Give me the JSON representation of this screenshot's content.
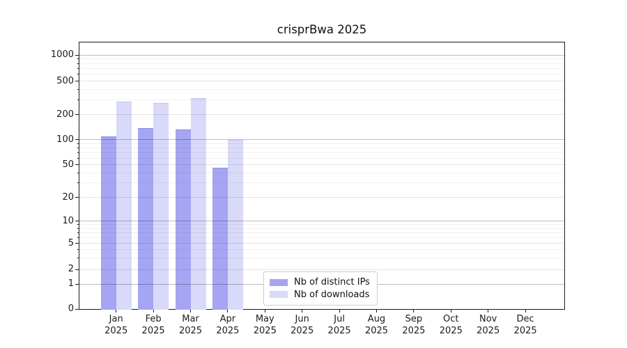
{
  "title": "crisprBwa 2025",
  "chart_data": {
    "type": "bar",
    "title": "crisprBwa 2025",
    "categories": [
      "Jan",
      "Feb",
      "Mar",
      "Apr",
      "May",
      "Jun",
      "Jul",
      "Aug",
      "Sep",
      "Oct",
      "Nov",
      "Dec"
    ],
    "category_year": "2025",
    "series": [
      {
        "name": "Nb of distinct IPs",
        "color": "#a5a5f3",
        "edge_color": "#8d8de4",
        "values": [
          110,
          138,
          133,
          46,
          null,
          null,
          null,
          null,
          null,
          null,
          null,
          null
        ]
      },
      {
        "name": "Nb of downloads",
        "color": "#d9d9f9",
        "edge_color": "#c2c2ef",
        "values": [
          285,
          277,
          315,
          100,
          null,
          null,
          null,
          null,
          null,
          null,
          null,
          null
        ]
      }
    ],
    "xlabel": "",
    "ylabel": "",
    "y_axis": {
      "scale": "symlog",
      "tick_labels": [
        "0",
        "1",
        "2",
        "5",
        "10",
        "20",
        "50",
        "100",
        "200",
        "500",
        "1000"
      ],
      "tick_values": [
        0,
        1,
        2,
        5,
        10,
        20,
        50,
        100,
        200,
        500,
        1000
      ],
      "ylim": [
        0,
        1400
      ]
    },
    "grid": {
      "visible": true,
      "which": "both",
      "orientation": "horizontal"
    },
    "legend": {
      "position": "lower-center",
      "entries": [
        "Nb of distinct IPs",
        "Nb of downloads"
      ]
    }
  }
}
